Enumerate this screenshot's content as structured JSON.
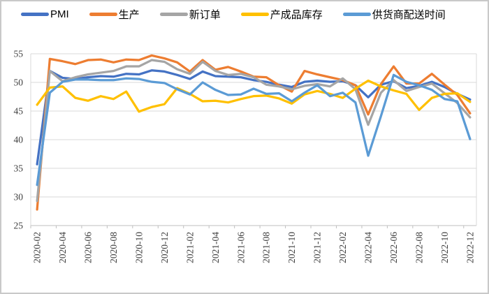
{
  "chart_data": {
    "type": "line",
    "title": "",
    "xlabel": "",
    "ylabel": "",
    "ylim": [
      25,
      55
    ],
    "y_ticks": [
      25,
      30,
      35,
      40,
      45,
      50,
      55
    ],
    "x_label_interval": 2,
    "grid": "horizontal",
    "legend_position": "top",
    "x": [
      "2020-02",
      "2020-03",
      "2020-04",
      "2020-05",
      "2020-06",
      "2020-07",
      "2020-08",
      "2020-09",
      "2020-10",
      "2020-11",
      "2020-12",
      "2021-01",
      "2021-02",
      "2021-03",
      "2021-04",
      "2021-05",
      "2021-06",
      "2021-07",
      "2021-08",
      "2021-09",
      "2021-10",
      "2021-11",
      "2021-12",
      "2022-01",
      "2022-02",
      "2022-03",
      "2022-04",
      "2022-05",
      "2022-06",
      "2022-07",
      "2022-08",
      "2022-09",
      "2022-10",
      "2022-11",
      "2022-12"
    ],
    "x_tick_labels": [
      "2020-02",
      "2020-04",
      "2020-06",
      "2020-08",
      "2020-10",
      "2020-12",
      "2021-02",
      "2021-04",
      "2021-06",
      "2021-08",
      "2021-10",
      "2021-12",
      "2022-02",
      "2022-04",
      "2022-06",
      "2022-08",
      "2022-10",
      "2022-12"
    ],
    "series": [
      {
        "id": "pmi",
        "name": "PMI",
        "color": "#4472C4",
        "values": [
          35.7,
          52.0,
          50.8,
          50.6,
          50.9,
          51.1,
          51.0,
          51.5,
          51.4,
          52.1,
          51.9,
          51.3,
          50.6,
          51.9,
          51.1,
          51.0,
          50.9,
          50.4,
          50.1,
          49.6,
          49.2,
          50.1,
          50.3,
          50.1,
          50.2,
          49.5,
          47.4,
          49.6,
          50.2,
          49.0,
          49.4,
          50.1,
          49.2,
          48.0,
          47.0
        ]
      },
      {
        "id": "production",
        "name": "生产",
        "color": "#ED7D31",
        "values": [
          27.8,
          54.1,
          53.7,
          53.2,
          53.9,
          54.0,
          53.5,
          54.0,
          53.9,
          54.7,
          54.2,
          53.5,
          51.9,
          53.9,
          52.2,
          52.7,
          51.9,
          51.0,
          50.9,
          49.5,
          48.4,
          52.0,
          51.4,
          50.9,
          50.4,
          49.5,
          44.4,
          49.7,
          52.8,
          49.8,
          49.8,
          51.5,
          49.6,
          47.8,
          44.6
        ]
      },
      {
        "id": "new-orders",
        "name": "新订单",
        "color": "#A5A5A5",
        "values": [
          29.3,
          52.0,
          50.2,
          50.9,
          51.4,
          51.7,
          52.0,
          52.8,
          52.8,
          53.9,
          53.6,
          52.3,
          51.5,
          53.6,
          52.0,
          51.3,
          51.5,
          50.9,
          49.6,
          49.3,
          48.8,
          49.4,
          49.7,
          49.3,
          50.7,
          48.8,
          42.6,
          48.2,
          50.4,
          48.5,
          49.2,
          49.8,
          48.1,
          46.4,
          43.9
        ]
      },
      {
        "id": "finished-goods-inventory",
        "name": "产成品库存",
        "color": "#FFC000",
        "values": [
          46.1,
          49.1,
          49.3,
          47.3,
          46.8,
          47.6,
          47.1,
          48.4,
          44.9,
          45.7,
          46.2,
          49.0,
          48.0,
          46.7,
          46.8,
          46.5,
          47.1,
          47.6,
          47.7,
          47.2,
          46.3,
          47.9,
          48.5,
          48.0,
          47.3,
          48.9,
          50.3,
          49.3,
          48.6,
          48.0,
          45.2,
          47.3,
          48.0,
          48.1,
          46.6
        ]
      },
      {
        "id": "supplier-delivery-time",
        "name": "供货商配送时间",
        "color": "#5B9BD5",
        "values": [
          32.1,
          48.2,
          50.1,
          50.5,
          50.5,
          50.4,
          50.4,
          50.7,
          50.6,
          50.1,
          49.9,
          48.8,
          47.9,
          50.0,
          48.7,
          47.8,
          47.9,
          48.9,
          48.0,
          48.1,
          46.7,
          48.2,
          49.5,
          47.6,
          48.2,
          46.5,
          37.2,
          44.1,
          51.3,
          50.1,
          49.5,
          48.7,
          47.1,
          46.7,
          40.1
        ]
      }
    ],
    "colors": {
      "gridline": "#d9d9d9",
      "axis": "#bfbfbf",
      "tick_label": "#3f3f3f",
      "background": "#ffffff"
    }
  }
}
